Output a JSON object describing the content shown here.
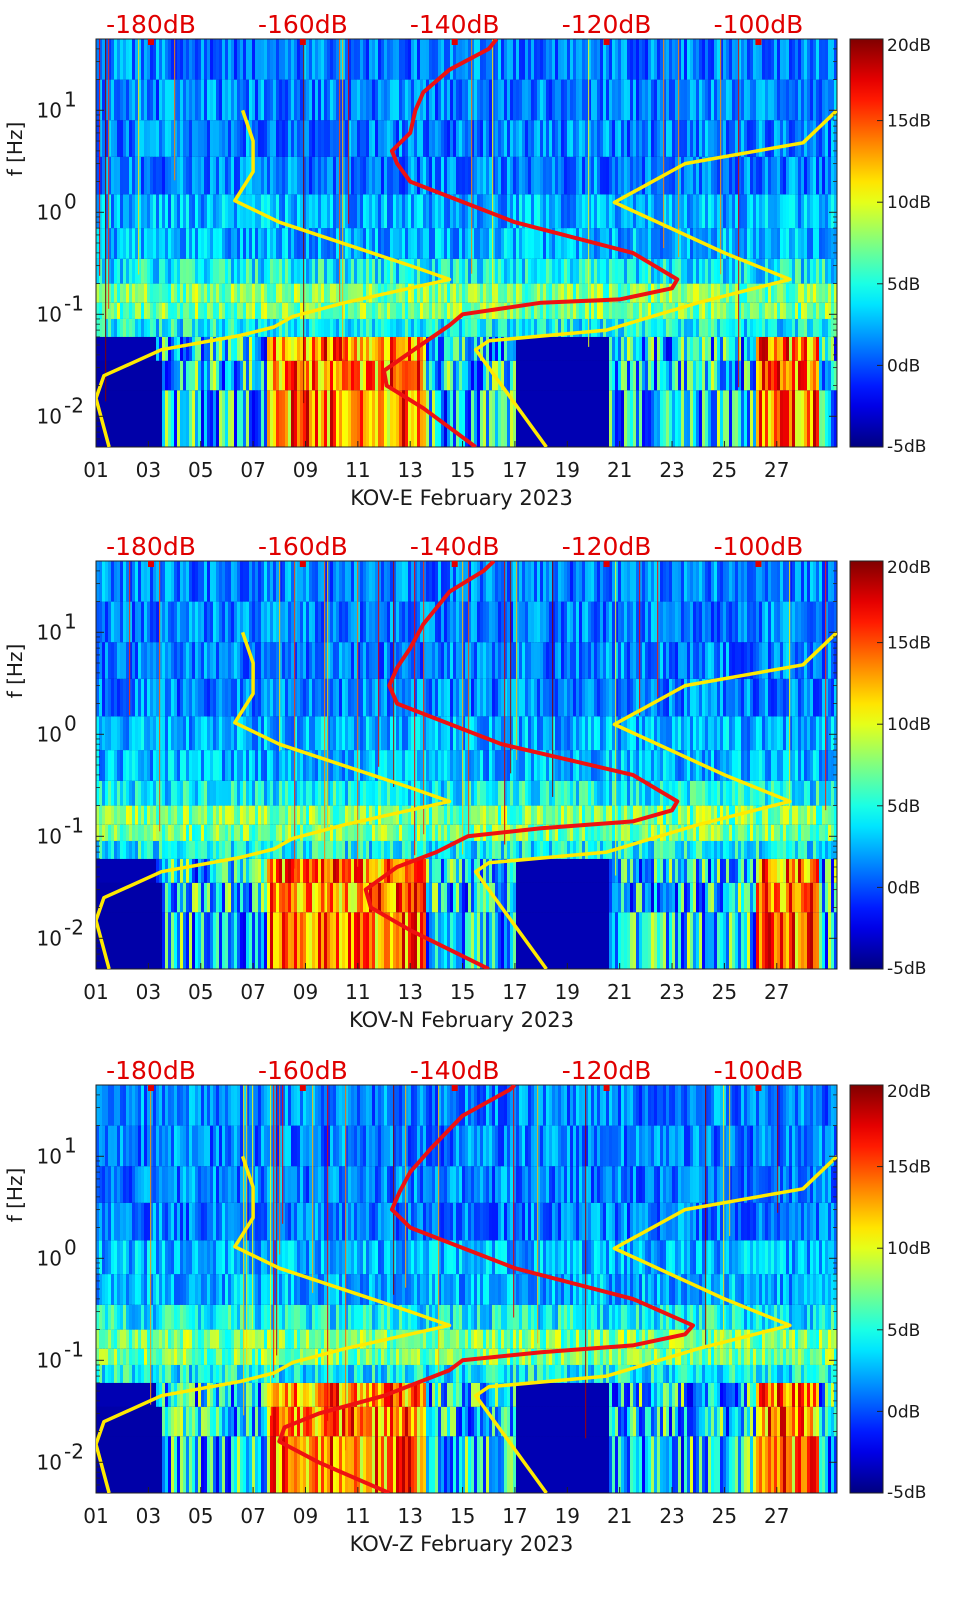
{
  "chart_data": [
    {
      "type": "heatmap",
      "station": "KOV-E",
      "title": "KOV-E February 2023",
      "ylabel": "f [Hz]",
      "xlim": [
        1,
        29.3
      ],
      "ylim": [
        0.005,
        50
      ],
      "x_ticks": [
        "01",
        "03",
        "05",
        "07",
        "09",
        "11",
        "13",
        "15",
        "17",
        "19",
        "21",
        "23",
        "25",
        "27"
      ],
      "y_ticks": [
        "10-2",
        "10-1",
        "100",
        "101"
      ],
      "top_axis_labels": [
        "-180dB",
        "-160dB",
        "-140dB",
        "-120dB",
        "-100dB"
      ],
      "colorbar": {
        "range_db": [
          -5,
          20
        ],
        "tick_labels": [
          "20dB",
          "15dB",
          "10dB",
          "5dB",
          "0dB",
          "-5dB"
        ]
      },
      "series": [
        {
          "name": "yellow-left",
          "color": "#ffea00",
          "points": [
            [
              1.5,
              0.005
            ],
            [
              1.0,
              0.015
            ],
            [
              1.3,
              0.025
            ],
            [
              3.5,
              0.045
            ],
            [
              6.5,
              0.062
            ],
            [
              7.8,
              0.075
            ],
            [
              8.5,
              0.095
            ],
            [
              10.5,
              0.13
            ],
            [
              14.5,
              0.22
            ],
            [
              13.0,
              0.3
            ],
            [
              8.0,
              0.8
            ],
            [
              6.3,
              1.3
            ],
            [
              7.0,
              2.5
            ],
            [
              7.0,
              5.0
            ],
            [
              6.6,
              10.0
            ]
          ]
        },
        {
          "name": "yellow-right",
          "color": "#ffea00",
          "points": [
            [
              18.2,
              0.005
            ],
            [
              15.5,
              0.045
            ],
            [
              16.0,
              0.055
            ],
            [
              20.5,
              0.07
            ],
            [
              24.0,
              0.13
            ],
            [
              27.5,
              0.22
            ],
            [
              25.0,
              0.4
            ],
            [
              20.8,
              1.25
            ],
            [
              23.5,
              3.0
            ],
            [
              28.0,
              4.8
            ],
            [
              29.3,
              10.0
            ]
          ]
        },
        {
          "name": "red-model",
          "color": "#ee1111",
          "points": [
            [
              15.5,
              0.005
            ],
            [
              13.5,
              0.012
            ],
            [
              12.1,
              0.02
            ],
            [
              12.0,
              0.028
            ],
            [
              13.3,
              0.048
            ],
            [
              14.5,
              0.078
            ],
            [
              15.0,
              0.1
            ],
            [
              18.0,
              0.13
            ],
            [
              21.0,
              0.14
            ],
            [
              23.0,
              0.18
            ],
            [
              23.2,
              0.22
            ],
            [
              21.5,
              0.4
            ],
            [
              17.0,
              0.8
            ],
            [
              13.0,
              2.0
            ],
            [
              12.5,
              3.0
            ],
            [
              12.3,
              4.0
            ],
            [
              13.0,
              6.0
            ],
            [
              13.2,
              10.0
            ],
            [
              13.5,
              15.0
            ],
            [
              14.5,
              25.0
            ],
            [
              16.0,
              40.0
            ],
            [
              16.3,
              50.0
            ]
          ]
        }
      ]
    },
    {
      "type": "heatmap",
      "station": "KOV-N",
      "title": "KOV-N February 2023",
      "ylabel": "f [Hz]",
      "xlim": [
        1,
        29.3
      ],
      "ylim": [
        0.005,
        50
      ],
      "x_ticks": [
        "01",
        "03",
        "05",
        "07",
        "09",
        "11",
        "13",
        "15",
        "17",
        "19",
        "21",
        "23",
        "25",
        "27"
      ],
      "y_ticks": [
        "10-2",
        "10-1",
        "100",
        "101"
      ],
      "top_axis_labels": [
        "-180dB",
        "-160dB",
        "-140dB",
        "-120dB",
        "-100dB"
      ],
      "colorbar": {
        "range_db": [
          -5,
          20
        ],
        "tick_labels": [
          "20dB",
          "15dB",
          "10dB",
          "5dB",
          "0dB",
          "-5dB"
        ]
      },
      "series": [
        {
          "name": "yellow-left",
          "color": "#ffea00",
          "points": [
            [
              1.5,
              0.005
            ],
            [
              1.0,
              0.015
            ],
            [
              1.3,
              0.025
            ],
            [
              3.5,
              0.045
            ],
            [
              6.5,
              0.062
            ],
            [
              7.8,
              0.075
            ],
            [
              8.5,
              0.095
            ],
            [
              10.5,
              0.13
            ],
            [
              14.5,
              0.22
            ],
            [
              13.0,
              0.3
            ],
            [
              8.0,
              0.8
            ],
            [
              6.3,
              1.3
            ],
            [
              7.0,
              2.5
            ],
            [
              7.0,
              5.0
            ],
            [
              6.6,
              10.0
            ]
          ]
        },
        {
          "name": "yellow-right",
          "color": "#ffea00",
          "points": [
            [
              18.2,
              0.005
            ],
            [
              15.5,
              0.045
            ],
            [
              16.0,
              0.055
            ],
            [
              20.5,
              0.07
            ],
            [
              24.0,
              0.13
            ],
            [
              27.5,
              0.22
            ],
            [
              25.0,
              0.4
            ],
            [
              20.8,
              1.25
            ],
            [
              23.5,
              3.0
            ],
            [
              28.0,
              4.8
            ],
            [
              29.3,
              10.0
            ]
          ]
        },
        {
          "name": "red-model",
          "color": "#ee1111",
          "points": [
            [
              16.0,
              0.005
            ],
            [
              13.0,
              0.012
            ],
            [
              11.5,
              0.02
            ],
            [
              11.3,
              0.03
            ],
            [
              12.5,
              0.05
            ],
            [
              14.0,
              0.07
            ],
            [
              15.2,
              0.1
            ],
            [
              18.0,
              0.12
            ],
            [
              21.5,
              0.14
            ],
            [
              23.0,
              0.18
            ],
            [
              23.2,
              0.22
            ],
            [
              21.5,
              0.4
            ],
            [
              16.5,
              0.8
            ],
            [
              12.5,
              2.0
            ],
            [
              12.2,
              3.0
            ],
            [
              12.5,
              4.5
            ],
            [
              13.0,
              7.0
            ],
            [
              13.5,
              12.0
            ],
            [
              14.5,
              25.0
            ],
            [
              15.8,
              40.0
            ],
            [
              16.2,
              50.0
            ]
          ]
        }
      ]
    },
    {
      "type": "heatmap",
      "station": "KOV-Z",
      "title": "KOV-Z February 2023",
      "ylabel": "f [Hz]",
      "xlim": [
        1,
        29.3
      ],
      "ylim": [
        0.005,
        50
      ],
      "x_ticks": [
        "01",
        "03",
        "05",
        "07",
        "09",
        "11",
        "13",
        "15",
        "17",
        "19",
        "21",
        "23",
        "25",
        "27"
      ],
      "y_ticks": [
        "10-2",
        "10-1",
        "100",
        "101"
      ],
      "top_axis_labels": [
        "-180dB",
        "-160dB",
        "-140dB",
        "-120dB",
        "-100dB"
      ],
      "colorbar": {
        "range_db": [
          -5,
          20
        ],
        "tick_labels": [
          "20dB",
          "15dB",
          "10dB",
          "5dB",
          "0dB",
          "-5dB"
        ]
      },
      "series": [
        {
          "name": "yellow-left",
          "color": "#ffea00",
          "points": [
            [
              1.5,
              0.005
            ],
            [
              1.0,
              0.015
            ],
            [
              1.3,
              0.025
            ],
            [
              3.5,
              0.045
            ],
            [
              6.5,
              0.062
            ],
            [
              7.8,
              0.075
            ],
            [
              8.5,
              0.095
            ],
            [
              10.5,
              0.13
            ],
            [
              14.5,
              0.22
            ],
            [
              13.0,
              0.3
            ],
            [
              8.0,
              0.8
            ],
            [
              6.3,
              1.3
            ],
            [
              7.0,
              2.5
            ],
            [
              7.0,
              5.0
            ],
            [
              6.6,
              10.0
            ]
          ]
        },
        {
          "name": "yellow-right",
          "color": "#ffea00",
          "points": [
            [
              18.2,
              0.005
            ],
            [
              15.5,
              0.045
            ],
            [
              16.0,
              0.055
            ],
            [
              20.5,
              0.07
            ],
            [
              24.0,
              0.13
            ],
            [
              27.5,
              0.22
            ],
            [
              25.0,
              0.4
            ],
            [
              20.8,
              1.25
            ],
            [
              23.5,
              3.0
            ],
            [
              28.0,
              4.8
            ],
            [
              29.3,
              10.0
            ]
          ]
        },
        {
          "name": "red-model",
          "color": "#ee1111",
          "points": [
            [
              12.2,
              0.005
            ],
            [
              9.5,
              0.01
            ],
            [
              8.0,
              0.016
            ],
            [
              8.2,
              0.022
            ],
            [
              9.5,
              0.03
            ],
            [
              12.0,
              0.045
            ],
            [
              14.5,
              0.08
            ],
            [
              15.0,
              0.1
            ],
            [
              18.0,
              0.12
            ],
            [
              21.5,
              0.14
            ],
            [
              23.5,
              0.18
            ],
            [
              23.8,
              0.22
            ],
            [
              21.5,
              0.4
            ],
            [
              17.0,
              0.8
            ],
            [
              13.0,
              2.0
            ],
            [
              12.3,
              3.0
            ],
            [
              12.6,
              4.5
            ],
            [
              13.0,
              7.0
            ],
            [
              13.8,
              12.0
            ],
            [
              15.0,
              25.0
            ],
            [
              16.8,
              45.0
            ],
            [
              17.0,
              50.0
            ]
          ]
        }
      ]
    }
  ]
}
